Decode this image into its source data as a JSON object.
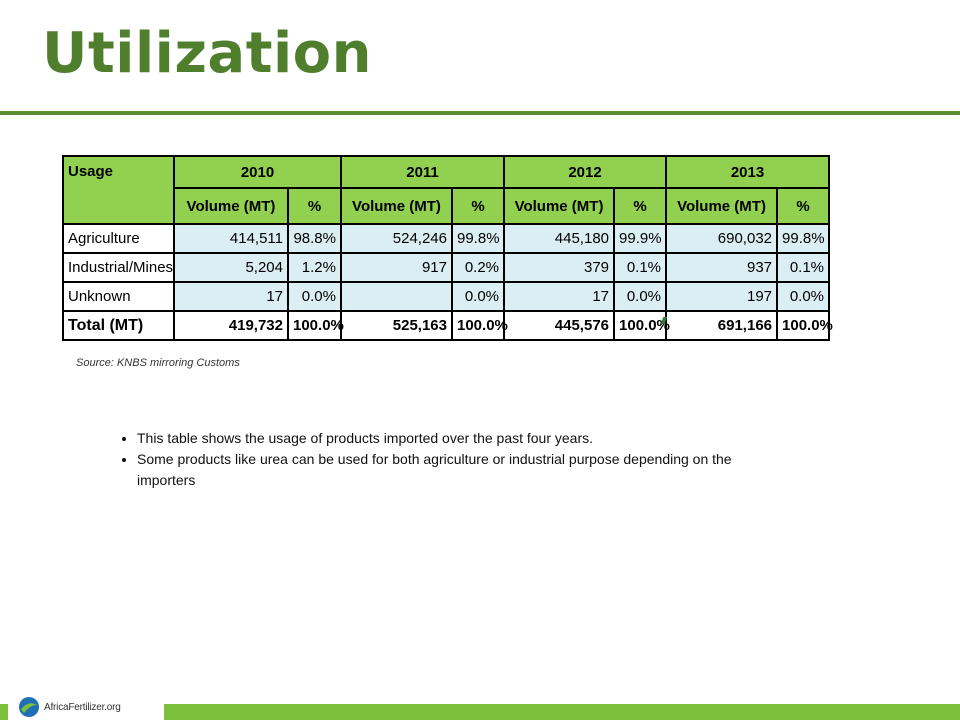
{
  "slide": {
    "title": "Utilization",
    "source": "Source: KNBS mirroring Customs"
  },
  "table": {
    "usage_header": "Usage",
    "years": [
      "2010",
      "2011",
      "2012",
      "2013"
    ],
    "volume_header": "Volume (MT)",
    "pct_header": "%",
    "rows": [
      {
        "label": "Agriculture",
        "values": [
          "414,511",
          "98.8%",
          "524,246",
          "99.8%",
          "445,180",
          "99.9%",
          "690,032",
          "99.8%"
        ]
      },
      {
        "label": "Industrial/Mines",
        "values": [
          "5,204",
          "1.2%",
          "917",
          "0.2%",
          "379",
          "0.1%",
          "937",
          "0.1%"
        ]
      },
      {
        "label": "Unknown",
        "values": [
          "17",
          "0.0%",
          "",
          "0.0%",
          "17",
          "0.0%",
          "197",
          "0.0%"
        ]
      }
    ],
    "total": {
      "label": "Total (MT)",
      "values": [
        "419,732",
        "100.0%",
        "525,163",
        "100.0%",
        "445,576",
        "100.0%",
        "691,166",
        "100.0%"
      ]
    }
  },
  "notes": [
    "This table shows the usage of products imported over the past four years.",
    "Some products like urea can be used for both agriculture or industrial purpose depending on the importers"
  ],
  "footer": {
    "logo_text": "AfricaFertilizer.org",
    "bar_color": "#7bbf3b"
  }
}
